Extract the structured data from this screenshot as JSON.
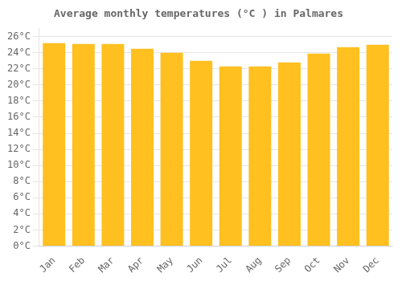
{
  "chart_data": {
    "type": "bar",
    "title": "Average monthly temperatures (°C ) in Palmares",
    "categories": [
      "Jan",
      "Feb",
      "Mar",
      "Apr",
      "May",
      "Jun",
      "Jul",
      "Aug",
      "Sep",
      "Oct",
      "Nov",
      "Dec"
    ],
    "values": [
      25.2,
      25.1,
      25.1,
      24.5,
      24.0,
      23.0,
      22.3,
      22.3,
      22.8,
      23.9,
      24.7,
      25.0
    ],
    "color": "#FFC020",
    "ylim": [
      0,
      27
    ],
    "yticks": [
      {
        "value": 0,
        "label": "0°C"
      },
      {
        "value": 2,
        "label": "2°C"
      },
      {
        "value": 4,
        "label": "4°C"
      },
      {
        "value": 6,
        "label": "6°C"
      },
      {
        "value": 8,
        "label": "8°C"
      },
      {
        "value": 10,
        "label": "10°C"
      },
      {
        "value": 12,
        "label": "12°C"
      },
      {
        "value": 14,
        "label": "14°C"
      },
      {
        "value": 16,
        "label": "16°C"
      },
      {
        "value": 18,
        "label": "18°C"
      },
      {
        "value": 20,
        "label": "20°C"
      },
      {
        "value": 22,
        "label": "22°C"
      },
      {
        "value": 24,
        "label": "24°C"
      },
      {
        "value": 26,
        "label": "26°C"
      }
    ],
    "grid": true
  }
}
